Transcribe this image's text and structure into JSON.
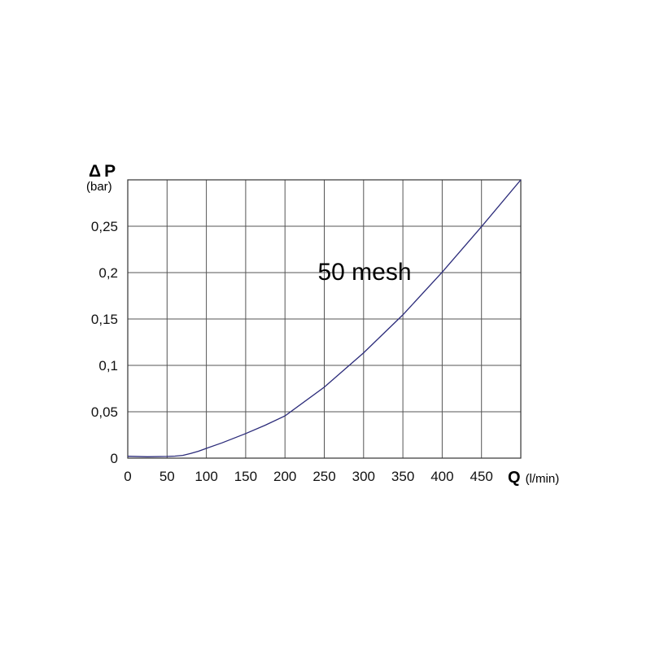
{
  "chart_data": {
    "type": "line",
    "x": [
      0,
      25,
      50,
      60,
      70,
      80,
      90,
      100,
      120,
      150,
      175,
      200,
      250,
      300,
      350,
      400,
      450,
      500
    ],
    "series": [
      {
        "values": [
          0.002,
          0.0015,
          0.0018,
          0.0022,
          0.003,
          0.005,
          0.0075,
          0.0105,
          0.0165,
          0.0265,
          0.0355,
          0.0455,
          0.0765,
          0.1135,
          0.1545,
          0.2005,
          0.2495,
          0.3
        ]
      }
    ],
    "xlim": [
      0,
      500
    ],
    "ylim": [
      0,
      0.3
    ],
    "x_ticks": [
      0,
      50,
      100,
      150,
      200,
      250,
      300,
      350,
      400,
      450
    ],
    "x_tick_labels": [
      "0",
      "50",
      "100",
      "150",
      "200",
      "250",
      "300",
      "350",
      "400",
      "450"
    ],
    "y_ticks": [
      0,
      0.05,
      0.1,
      0.15,
      0.2,
      0.25
    ],
    "y_tick_labels": [
      "0",
      "0,05",
      "0,1",
      "0,15",
      "0,2",
      "0,25"
    ],
    "y_label_symbol": "Δ",
    "y_label": "P",
    "y_unit": "(bar)",
    "x_label": "Q",
    "x_unit": "(l/min)",
    "annotation": {
      "text": "50 mesh",
      "x": 255,
      "y": 0.2
    },
    "grid": true,
    "colors": {
      "line": "#2b2b7a",
      "grid": "#555555"
    }
  }
}
